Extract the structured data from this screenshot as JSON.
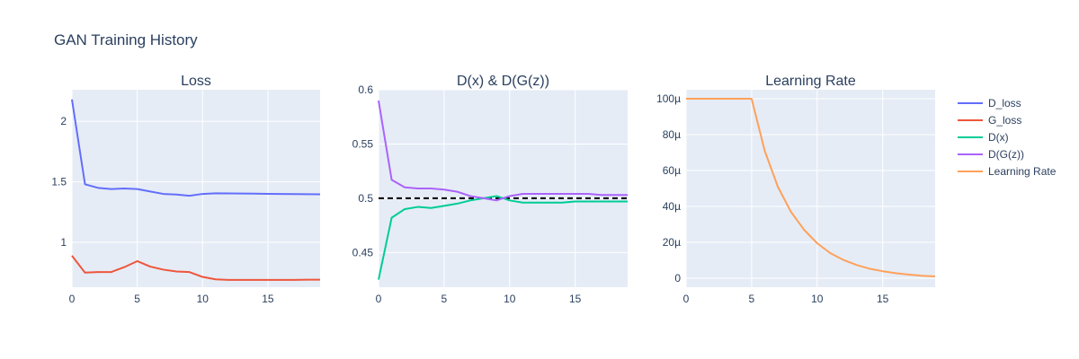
{
  "title": "GAN Training History",
  "legend": {
    "position": "right",
    "items": [
      {
        "label": "D_loss",
        "color": "#636efa"
      },
      {
        "label": "G_loss",
        "color": "#ef553b"
      },
      {
        "label": "D(x)",
        "color": "#00cc96"
      },
      {
        "label": "D(G(z))",
        "color": "#ab63fa"
      },
      {
        "label": "Learning Rate",
        "color": "#ffa15a"
      }
    ]
  },
  "chart_data": [
    {
      "type": "line",
      "title": "Loss",
      "xlabel": "",
      "ylabel": "",
      "xlim": [
        0,
        19
      ],
      "ylim": [
        0.63,
        2.26
      ],
      "x_ticks": [
        0,
        5,
        10,
        15
      ],
      "y_ticks": [
        1,
        1.5,
        2
      ],
      "y_tick_labels": [
        "1",
        "1.5",
        "2"
      ],
      "grid": true,
      "x": [
        0,
        1,
        2,
        3,
        4,
        5,
        6,
        7,
        8,
        9,
        10,
        11,
        12,
        13,
        14,
        15,
        16,
        17,
        18,
        19
      ],
      "series": [
        {
          "name": "D_loss",
          "color": "#636efa",
          "values": [
            2.18,
            1.48,
            1.45,
            1.44,
            1.445,
            1.44,
            1.42,
            1.4,
            1.395,
            1.385,
            1.4,
            1.405,
            1.404,
            1.403,
            1.402,
            1.401,
            1.4,
            1.399,
            1.398,
            1.397
          ]
        },
        {
          "name": "G_loss",
          "color": "#ef553b",
          "values": [
            0.89,
            0.75,
            0.755,
            0.755,
            0.795,
            0.845,
            0.8,
            0.775,
            0.76,
            0.755,
            0.715,
            0.695,
            0.69,
            0.69,
            0.69,
            0.69,
            0.69,
            0.69,
            0.692,
            0.692
          ]
        }
      ]
    },
    {
      "type": "line",
      "title": "D(x) & D(G(z))",
      "xlabel": "",
      "ylabel": "",
      "xlim": [
        0,
        19
      ],
      "ylim": [
        0.418,
        0.6
      ],
      "x_ticks": [
        0,
        5,
        10,
        15
      ],
      "y_ticks": [
        0.45,
        0.5,
        0.55,
        0.6
      ],
      "y_tick_labels": [
        "0.45",
        "0.5",
        "0.55",
        "0.6"
      ],
      "grid": true,
      "reference_line": {
        "y": 0.5,
        "color": "#000000",
        "style": "dash"
      },
      "x": [
        0,
        1,
        2,
        3,
        4,
        5,
        6,
        7,
        8,
        9,
        10,
        11,
        12,
        13,
        14,
        15,
        16,
        17,
        18,
        19
      ],
      "series": [
        {
          "name": "D(x)",
          "color": "#00cc96",
          "values": [
            0.425,
            0.482,
            0.49,
            0.492,
            0.491,
            0.493,
            0.495,
            0.498,
            0.5,
            0.502,
            0.498,
            0.496,
            0.496,
            0.496,
            0.496,
            0.497,
            0.497,
            0.497,
            0.497,
            0.497
          ]
        },
        {
          "name": "D(G(z))",
          "color": "#ab63fa",
          "values": [
            0.59,
            0.517,
            0.51,
            0.509,
            0.509,
            0.508,
            0.506,
            0.502,
            0.5,
            0.498,
            0.502,
            0.504,
            0.504,
            0.504,
            0.504,
            0.504,
            0.504,
            0.503,
            0.503,
            0.503
          ]
        }
      ]
    },
    {
      "type": "line",
      "title": "Learning Rate",
      "xlabel": "",
      "ylabel": "",
      "xlim": [
        0,
        19
      ],
      "ylim": [
        -5e-06,
        0.000105
      ],
      "x_ticks": [
        0,
        5,
        10,
        15
      ],
      "y_ticks": [
        0,
        2e-05,
        4e-05,
        6e-05,
        8e-05,
        0.0001
      ],
      "y_tick_labels": [
        "0",
        "20µ",
        "40µ",
        "60µ",
        "80µ",
        "100µ"
      ],
      "grid": true,
      "x": [
        0,
        1,
        2,
        3,
        4,
        5,
        6,
        7,
        8,
        9,
        10,
        11,
        12,
        13,
        14,
        15,
        16,
        17,
        18,
        19
      ],
      "series": [
        {
          "name": "Learning Rate",
          "color": "#ffa15a",
          "values": [
            0.0001,
            0.0001,
            0.0001,
            0.0001,
            0.0001,
            0.0001,
            7.1e-05,
            5.1e-05,
            3.7e-05,
            2.7e-05,
            1.95e-05,
            1.4e-05,
            1.02e-05,
            7.4e-06,
            5.3e-06,
            3.9e-06,
            2.8e-06,
            2e-06,
            1.4e-06,
            1e-06
          ]
        }
      ]
    }
  ]
}
